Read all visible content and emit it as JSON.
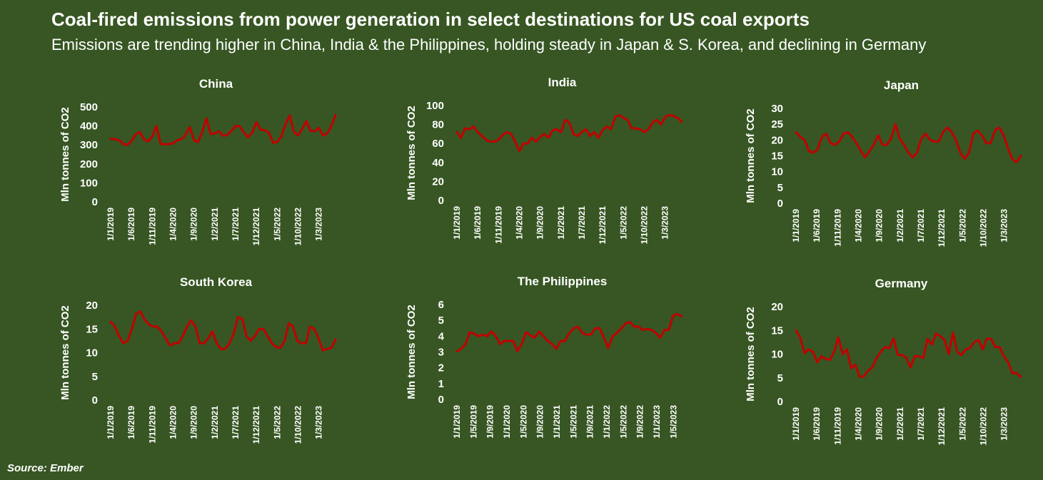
{
  "header": {
    "title": "Coal-fired emissions from power generation in select destinations for US coal exports",
    "subtitle": "Emissions are trending higher in China, India & the Philippines, holding steady in Japan & S. Korea, and declining in Germany"
  },
  "footer": {
    "source": "Source: Ember"
  },
  "colors": {
    "background": "#375623",
    "line": "#c00000",
    "text": "#ffffff"
  },
  "chart_data": [
    {
      "type": "line",
      "title": "China",
      "ylabel": "Mln tonnes of CO2",
      "ylim": [
        0,
        500
      ],
      "yticks": [
        0,
        100,
        200,
        300,
        400,
        500
      ],
      "xticks": [
        "1/1/2019",
        "1/6/2019",
        "1/11/2019",
        "1/4/2020",
        "1/9/2020",
        "1/2/2021",
        "1/7/2021",
        "1/12/2021",
        "1/5/2022",
        "1/10/2022",
        "1/3/2023"
      ],
      "x_start": "1/1/2019",
      "x_end": "1/7/2023",
      "values": [
        332,
        330,
        325,
        305,
        300,
        320,
        355,
        368,
        330,
        318,
        345,
        400,
        305,
        303,
        305,
        308,
        325,
        330,
        355,
        395,
        325,
        315,
        368,
        440,
        358,
        360,
        372,
        348,
        352,
        375,
        400,
        398,
        365,
        340,
        365,
        420,
        380,
        378,
        365,
        312,
        315,
        345,
        410,
        455,
        370,
        350,
        385,
        425,
        375,
        372,
        390,
        350,
        360,
        400,
        458
      ]
    },
    {
      "type": "line",
      "title": "India",
      "ylabel": "Mln tonnes of CO2",
      "ylim": [
        0,
        100
      ],
      "yticks": [
        0,
        20,
        40,
        60,
        80,
        100
      ],
      "xticks": [
        "1/1/2019",
        "1/6/2019",
        "1/11/2019",
        "1/4/2020",
        "1/9/2020",
        "1/2/2021",
        "1/7/2021",
        "1/12/2021",
        "1/5/2022",
        "1/10/2022",
        "1/3/2023"
      ],
      "x_start": "1/1/2019",
      "x_end": "1/7/2023",
      "values": [
        72,
        66,
        76,
        75,
        78,
        72,
        68,
        64,
        62,
        62,
        64,
        69,
        72,
        70,
        62,
        52,
        60,
        60,
        66,
        62,
        67,
        70,
        66,
        74,
        75,
        72,
        85,
        82,
        70,
        68,
        72,
        75,
        68,
        72,
        66,
        74,
        78,
        75,
        88,
        90,
        87,
        85,
        76,
        76,
        75,
        72,
        75,
        82,
        85,
        80,
        88,
        90,
        89,
        87,
        83
      ]
    },
    {
      "type": "line",
      "title": "Japan",
      "ylabel": "Mln tonnes of CO2",
      "ylim": [
        0,
        30
      ],
      "yticks": [
        0,
        5,
        10,
        15,
        20,
        25,
        30
      ],
      "xticks": [
        "1/1/2019",
        "1/6/2019",
        "1/11/2019",
        "1/4/2020",
        "1/9/2020",
        "1/2/2021",
        "1/7/2021",
        "1/12/2021",
        "1/5/2022",
        "1/10/2022",
        "1/3/2023"
      ],
      "x_start": "1/1/2019",
      "x_end": "1/7/2023",
      "values": [
        22.5,
        21,
        20,
        16.5,
        16,
        17,
        21,
        22,
        19,
        18.5,
        19.5,
        22,
        22.5,
        21,
        19,
        16.5,
        14.5,
        16.5,
        18.5,
        21.5,
        18.5,
        18.5,
        20.5,
        25,
        20.5,
        18.5,
        16,
        14.5,
        16,
        20.5,
        22,
        20,
        19.5,
        19.5,
        22.5,
        24,
        22.5,
        20,
        16,
        14,
        16,
        22,
        23,
        21.5,
        19,
        19,
        23,
        24,
        21.5,
        17.5,
        14,
        13,
        15
      ]
    },
    {
      "type": "line",
      "title": "South Korea",
      "ylabel": "Mln tonnes of CO2",
      "ylim": [
        0,
        20
      ],
      "yticks": [
        0,
        5,
        10,
        15,
        20
      ],
      "xticks": [
        "1/1/2019",
        "1/6/2019",
        "1/11/2019",
        "1/4/2020",
        "1/9/2020",
        "1/2/2021",
        "1/7/2021",
        "1/12/2021",
        "1/5/2022",
        "1/10/2022",
        "1/3/2023"
      ],
      "x_start": "1/1/2019",
      "x_end": "1/7/2023",
      "values": [
        16.5,
        15.5,
        13.5,
        12,
        12.5,
        15,
        18.2,
        18.7,
        17,
        16,
        15.5,
        15.5,
        14.5,
        13,
        11.5,
        12,
        12,
        13.5,
        15.5,
        16.8,
        15.5,
        12,
        12,
        13,
        14.5,
        12,
        10.8,
        10.8,
        12,
        14,
        17.5,
        17.2,
        13.5,
        12.5,
        13.5,
        15,
        15,
        13.5,
        12,
        11.2,
        11,
        12.5,
        16.2,
        15.5,
        12.5,
        12,
        12,
        15.5,
        15,
        13,
        10.5,
        10.8,
        11,
        12.8
      ]
    },
    {
      "type": "line",
      "title": "The Philippines",
      "ylabel": "Mln tonnes of CO2",
      "ylim": [
        0,
        6
      ],
      "yticks": [
        0,
        1,
        2,
        3,
        4,
        5,
        6
      ],
      "xticks": [
        "1/1/2019",
        "1/5/2019",
        "1/9/2019",
        "1/1/2020",
        "1/5/2020",
        "1/9/2020",
        "1/1/2021",
        "1/5/2021",
        "1/9/2021",
        "1/1/2022",
        "1/5/2022",
        "1/9/2022",
        "1/1/2023",
        "1/5/2023"
      ],
      "x_start": "1/1/2019",
      "x_end": "1/7/2023",
      "values": [
        3.05,
        3.2,
        3.5,
        4.25,
        4.15,
        4.0,
        4.1,
        4.0,
        4.3,
        4.0,
        3.5,
        3.7,
        3.7,
        3.7,
        3.05,
        3.5,
        4.25,
        4.05,
        3.9,
        4.3,
        4.0,
        3.7,
        3.5,
        3.2,
        3.7,
        3.7,
        4.2,
        4.5,
        4.6,
        4.2,
        4.1,
        4.1,
        4.5,
        4.5,
        3.9,
        3.25,
        4.0,
        4.2,
        4.5,
        4.8,
        4.9,
        4.6,
        4.6,
        4.4,
        4.45,
        4.4,
        4.2,
        3.9,
        4.4,
        4.4,
        5.3,
        5.4,
        5.25
      ]
    },
    {
      "type": "line",
      "title": "Germany",
      "ylabel": "Mln tonnes of CO2",
      "ylim": [
        0,
        20
      ],
      "yticks": [
        0,
        5,
        10,
        15,
        20
      ],
      "xticks": [
        "1/1/2019",
        "1/6/2019",
        "1/11/2019",
        "1/4/2020",
        "1/9/2020",
        "1/2/2021",
        "1/7/2021",
        "1/12/2021",
        "1/5/2022",
        "1/10/2022",
        "1/3/2023"
      ],
      "x_start": "1/1/2019",
      "x_end": "1/7/2023",
      "values": [
        15,
        13.5,
        10.2,
        11,
        10.5,
        8.3,
        9.5,
        9,
        8.8,
        10.5,
        13.5,
        10,
        11,
        7,
        7.8,
        5.2,
        5.3,
        6.5,
        7.2,
        9.2,
        10.5,
        11.5,
        11.2,
        13.3,
        9.8,
        9.8,
        9.2,
        7.2,
        9.6,
        9.5,
        9.2,
        13.2,
        12,
        14.3,
        13.8,
        13,
        10,
        14.5,
        10.5,
        9.8,
        11,
        11.3,
        12.5,
        13,
        11,
        13.3,
        13.2,
        11.5,
        11.5,
        9.5,
        8.3,
        6,
        6,
        5.2
      ]
    }
  ]
}
